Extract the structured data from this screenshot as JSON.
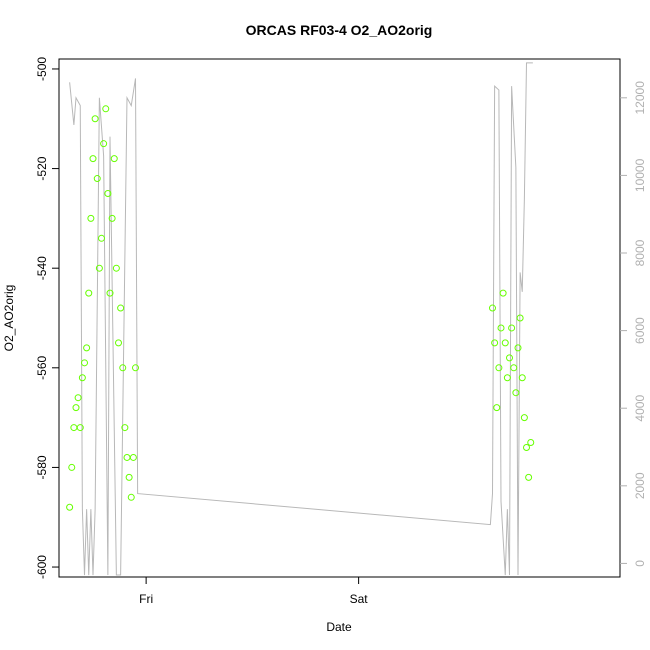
{
  "chart_data": {
    "type": "scatter",
    "title": "ORCAS RF03-4 O2_AO2orig",
    "xlabel": "Date",
    "ylabel": "O2_AO2orig",
    "x_ticks": [
      "Fri",
      "Sat"
    ],
    "x_tick_values": [
      17.0,
      18.0
    ],
    "xlim": [
      16.59,
      19.23
    ],
    "ylim": [
      -602,
      -498
    ],
    "y_ticks": [
      -600,
      -580,
      -560,
      -540,
      -520,
      -500
    ],
    "y2_ticks": [
      0,
      2000,
      4000,
      6000,
      8000,
      10000,
      12000
    ],
    "y2lim": [
      -350,
      13000
    ],
    "grid": false,
    "colors": {
      "points": "#66ff00",
      "line": "#b8b8b8",
      "frame": "#000000"
    },
    "series": [
      {
        "kind": "points",
        "segments": [
          [
            16.64,
            -588
          ],
          [
            16.65,
            -580
          ],
          [
            16.66,
            -572
          ],
          [
            16.67,
            -568
          ],
          [
            16.68,
            -566
          ],
          [
            16.69,
            -572
          ],
          [
            16.7,
            -562
          ],
          [
            16.71,
            -559
          ],
          [
            16.72,
            -556
          ],
          [
            16.73,
            -545
          ],
          [
            16.74,
            -530
          ],
          [
            16.75,
            -518
          ],
          [
            16.76,
            -510
          ],
          [
            16.77,
            -522
          ],
          [
            16.78,
            -540
          ],
          [
            16.79,
            -534
          ],
          [
            16.8,
            -515
          ],
          [
            16.81,
            -508
          ],
          [
            16.82,
            -525
          ],
          [
            16.83,
            -545
          ],
          [
            16.84,
            -530
          ],
          [
            16.85,
            -518
          ],
          [
            16.86,
            -540
          ],
          [
            16.87,
            -555
          ],
          [
            16.88,
            -548
          ],
          [
            16.89,
            -560
          ],
          [
            16.9,
            -572
          ],
          [
            16.91,
            -578
          ],
          [
            16.92,
            -582
          ],
          [
            16.93,
            -586
          ],
          [
            16.94,
            -578
          ],
          [
            16.95,
            -560
          ]
        ],
        "segments2": [
          [
            18.63,
            -548
          ],
          [
            18.64,
            -555
          ],
          [
            18.65,
            -568
          ],
          [
            18.66,
            -560
          ],
          [
            18.67,
            -552
          ],
          [
            18.68,
            -545
          ],
          [
            18.69,
            -555
          ],
          [
            18.7,
            -562
          ],
          [
            18.71,
            -558
          ],
          [
            18.72,
            -552
          ],
          [
            18.73,
            -560
          ],
          [
            18.74,
            -565
          ],
          [
            18.75,
            -556
          ],
          [
            18.76,
            -550
          ],
          [
            18.77,
            -562
          ],
          [
            18.78,
            -570
          ],
          [
            18.79,
            -576
          ],
          [
            18.8,
            -582
          ],
          [
            18.81,
            -575
          ]
        ]
      },
      {
        "kind": "line",
        "y2_values": [
          [
            16.64,
            12400
          ],
          [
            16.66,
            11300
          ],
          [
            16.67,
            12000
          ],
          [
            16.69,
            11800
          ],
          [
            16.7,
            1400
          ],
          [
            16.71,
            -300
          ],
          [
            16.72,
            1400
          ],
          [
            16.73,
            -300
          ],
          [
            16.74,
            1400
          ],
          [
            16.75,
            -300
          ],
          [
            16.76,
            1400
          ],
          [
            16.78,
            12000
          ],
          [
            16.8,
            10500
          ],
          [
            16.82,
            -300
          ],
          [
            16.83,
            11000
          ],
          [
            16.86,
            -300
          ],
          [
            16.88,
            -300
          ],
          [
            16.91,
            12000
          ],
          [
            16.93,
            11800
          ],
          [
            16.95,
            12500
          ],
          [
            16.96,
            1800
          ],
          [
            18.62,
            1000
          ],
          [
            18.63,
            1800
          ],
          [
            18.64,
            12300
          ],
          [
            18.66,
            12200
          ],
          [
            18.67,
            1600
          ],
          [
            18.69,
            -300
          ],
          [
            18.7,
            1400
          ],
          [
            18.71,
            -300
          ],
          [
            18.72,
            12300
          ],
          [
            18.74,
            10200
          ],
          [
            18.75,
            -300
          ],
          [
            18.76,
            7500
          ],
          [
            18.77,
            7000
          ],
          [
            18.78,
            9400
          ],
          [
            18.79,
            12900
          ],
          [
            18.81,
            12900
          ],
          [
            18.82,
            12900
          ]
        ]
      }
    ]
  }
}
